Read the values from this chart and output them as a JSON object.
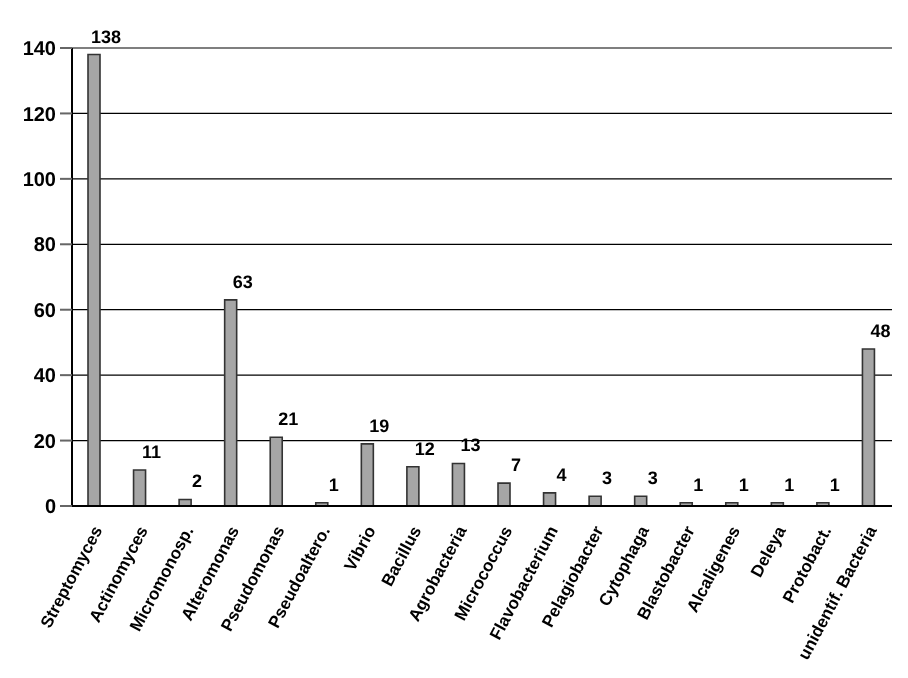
{
  "chart_data": {
    "type": "bar",
    "categories": [
      "Streptomyces",
      "Actinomyces",
      "Micromonosp.",
      "Alteromonas",
      "Pseudomonas",
      "Pseudoaltero.",
      "Vibrio",
      "Bacillus",
      "Agrobacteria",
      "Micrococcus",
      "Flavobacterium",
      "Pelagiobacter",
      "Cytophaga",
      "Blastobacter",
      "Alcaligenes",
      "Deleya",
      "Protobact.",
      "unidentif. Bacteria"
    ],
    "values": [
      138,
      11,
      2,
      63,
      21,
      1,
      19,
      12,
      13,
      7,
      4,
      3,
      3,
      1,
      1,
      1,
      1,
      48
    ],
    "color": "#a6a6a6",
    "ylim": [
      0,
      140
    ],
    "yticks": [
      0,
      20,
      40,
      60,
      80,
      100,
      120,
      140
    ],
    "grid": "y",
    "data_labels": true
  }
}
